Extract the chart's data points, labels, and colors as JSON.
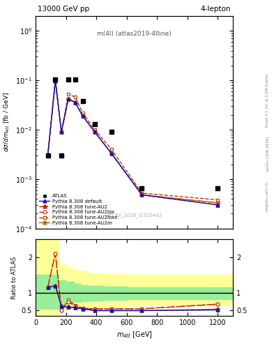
{
  "title_top": "13000 GeV pp",
  "title_right": "4-lepton",
  "plot_label": "m(4l) (atlas2019-4lline)",
  "atlas_label": "ATLAS_2019_I1720442",
  "data_x": [
    80,
    130,
    170,
    215,
    260,
    310,
    390,
    500,
    700,
    1200
  ],
  "data_y": [
    0.003,
    0.105,
    0.003,
    0.105,
    0.105,
    0.038,
    0.013,
    0.009,
    0.00065,
    0.00065
  ],
  "mc_x": [
    80,
    130,
    170,
    215,
    260,
    310,
    390,
    500,
    700,
    1200
  ],
  "default_y": [
    0.003,
    0.098,
    0.009,
    0.042,
    0.036,
    0.019,
    0.009,
    0.0033,
    0.00048,
    0.0003
  ],
  "au2_y": [
    0.003,
    0.098,
    0.009,
    0.042,
    0.036,
    0.019,
    0.009,
    0.0033,
    0.00048,
    0.0003
  ],
  "au2lox_y": [
    0.003,
    0.098,
    0.009,
    0.042,
    0.036,
    0.019,
    0.009,
    0.0033,
    0.00048,
    0.00033
  ],
  "au2loxx_y": [
    0.003,
    0.1,
    0.009,
    0.052,
    0.046,
    0.022,
    0.01,
    0.004,
    0.00052,
    0.00038
  ],
  "au2m_y": [
    0.003,
    0.098,
    0.009,
    0.042,
    0.036,
    0.019,
    0.009,
    0.0033,
    0.00048,
    0.00033
  ],
  "default_ratio": [
    1.15,
    1.2,
    0.62,
    0.6,
    0.58,
    0.55,
    0.5,
    0.5,
    0.5,
    0.52
  ],
  "au2_ratio": [
    1.15,
    1.2,
    0.62,
    0.6,
    0.58,
    0.55,
    0.5,
    0.5,
    0.5,
    0.52
  ],
  "au2lox_ratio": [
    1.15,
    2.1,
    0.5,
    0.75,
    0.62,
    0.55,
    0.55,
    0.55,
    0.55,
    0.68
  ],
  "au2loxx_ratio": [
    1.15,
    2.1,
    0.5,
    0.8,
    0.65,
    0.57,
    0.55,
    0.55,
    0.55,
    0.68
  ],
  "au2m_ratio": [
    1.15,
    1.2,
    0.62,
    0.6,
    0.58,
    0.55,
    0.5,
    0.5,
    0.5,
    0.54
  ],
  "band_step_x": [
    0,
    100,
    150,
    200,
    250,
    300,
    350,
    450,
    600,
    850,
    1300
  ],
  "yellow_upper": [
    2.5,
    2.5,
    2.5,
    1.8,
    1.7,
    1.65,
    1.6,
    1.55,
    1.52,
    1.5,
    1.5
  ],
  "yellow_lower": [
    0.35,
    0.35,
    0.35,
    0.5,
    0.55,
    0.58,
    0.6,
    0.62,
    0.63,
    0.64,
    0.64
  ],
  "green_upper": [
    1.5,
    1.5,
    1.5,
    1.35,
    1.3,
    1.25,
    1.22,
    1.2,
    1.18,
    1.16,
    1.16
  ],
  "green_lower": [
    0.55,
    0.55,
    0.55,
    0.68,
    0.72,
    0.75,
    0.77,
    0.78,
    0.8,
    0.82,
    0.82
  ],
  "ylim_main": [
    0.0001,
    2.0
  ],
  "ylim_ratio": [
    0.35,
    2.5
  ],
  "xlim": [
    0,
    1300
  ]
}
